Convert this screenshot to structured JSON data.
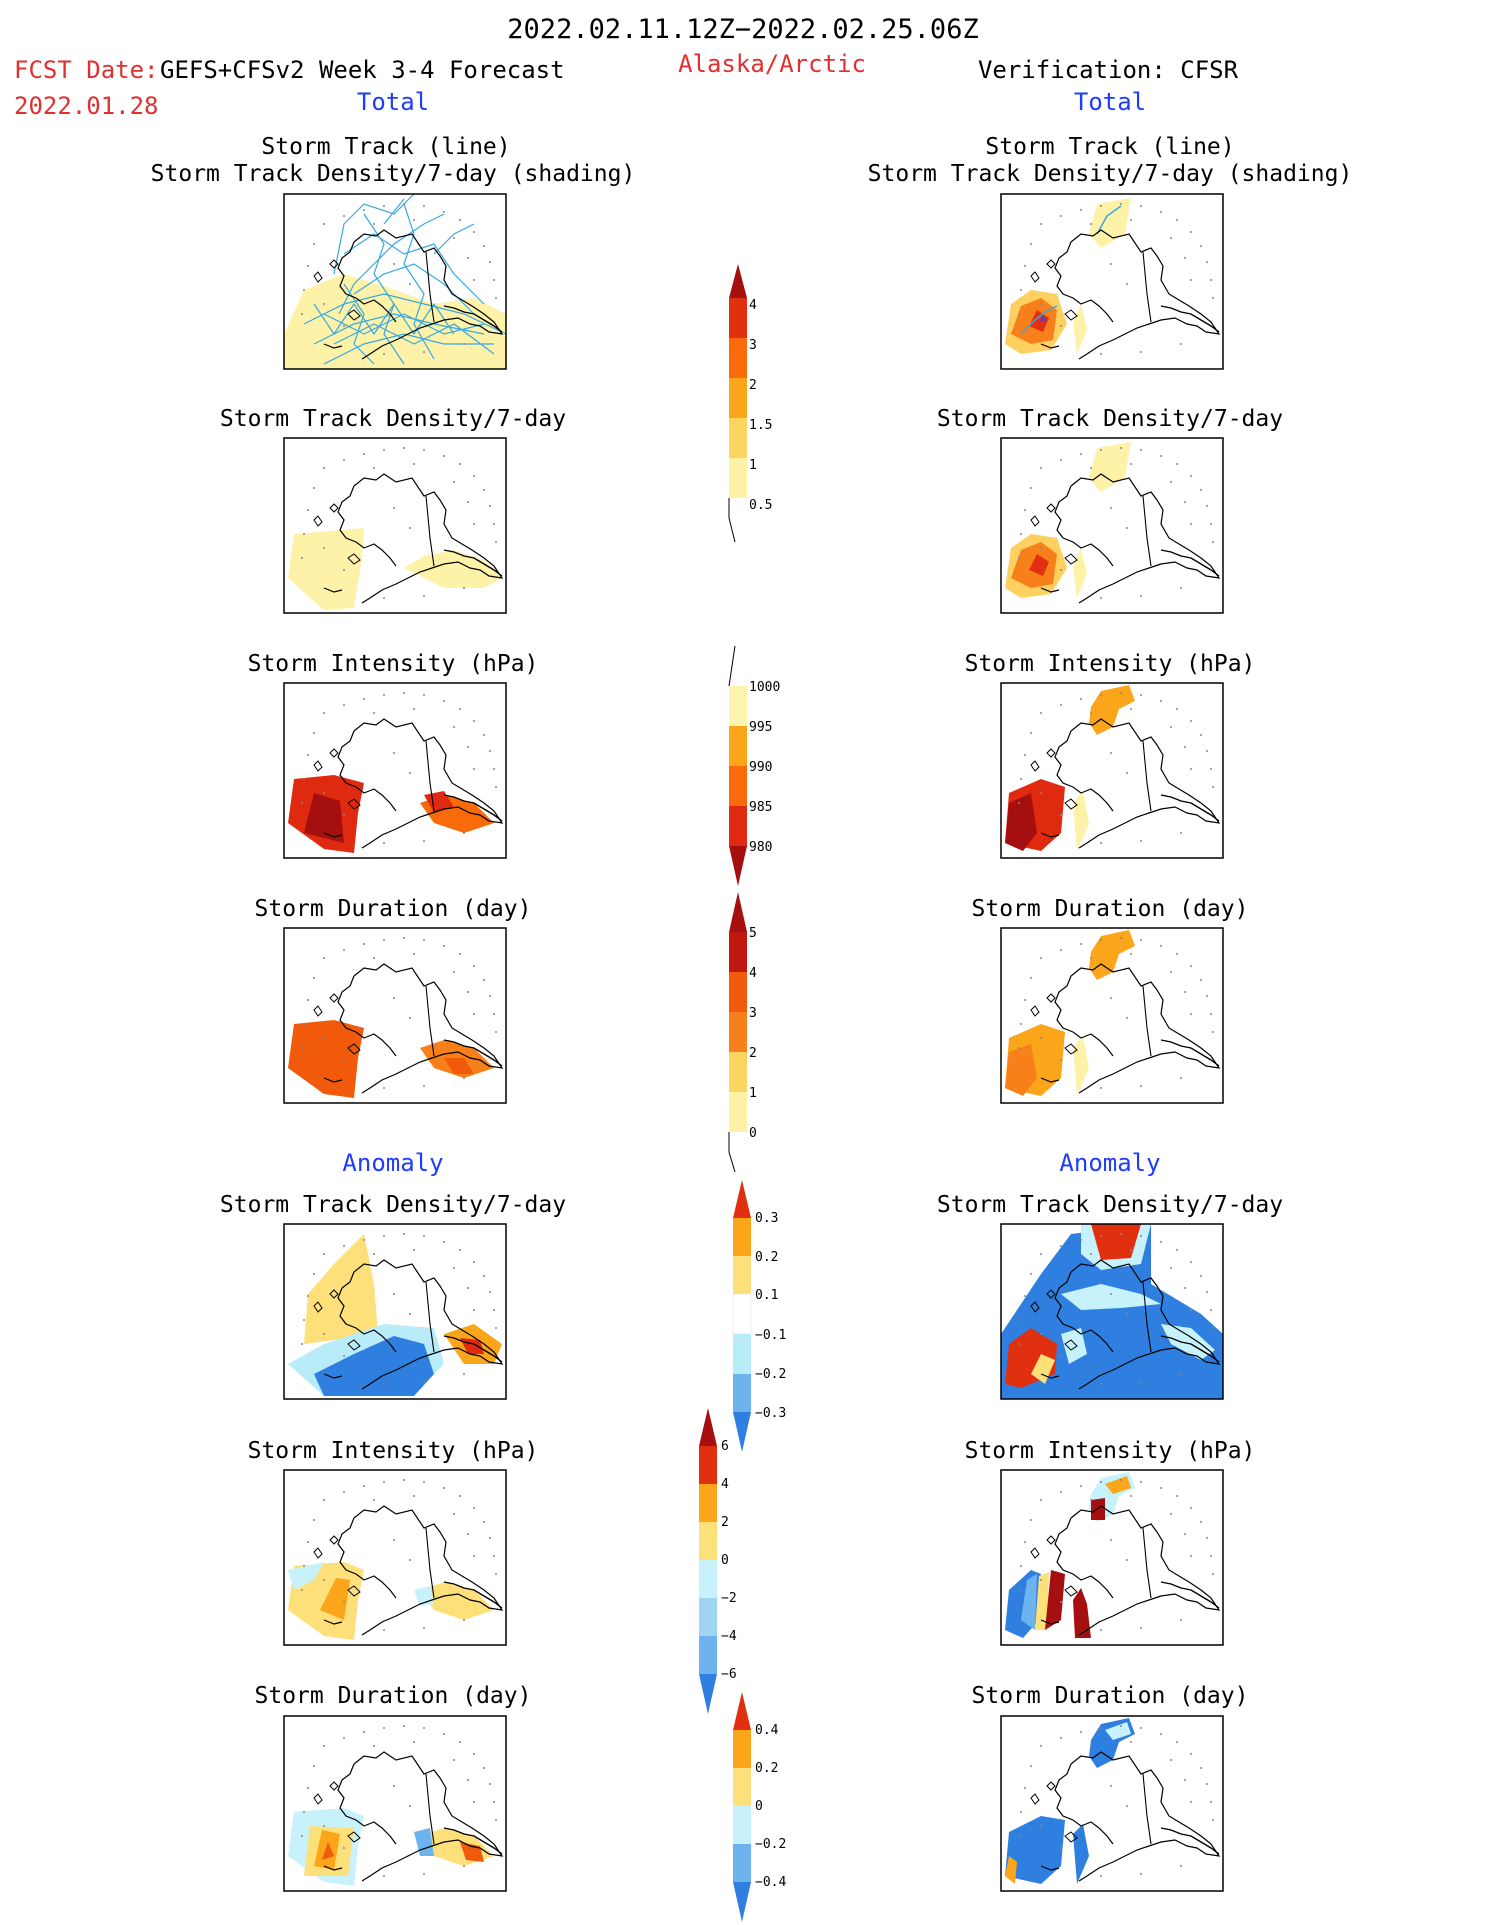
{
  "header": {
    "date_range": "2022.02.11.12Z−2022.02.25.06Z",
    "fcst_label": "FCST Date:",
    "fcst_source": "GEFS+CFSv2 Week 3-4 Forecast",
    "fcst_date": "2022.01.28",
    "region": "Alaska/Arctic",
    "verification": "Verification: CFSR"
  },
  "columns": {
    "left_total": "Total",
    "right_total": "Total",
    "left_anomaly": "Anomaly",
    "right_anomaly": "Anomaly"
  },
  "panel_titles": {
    "track_line": "Storm Track (line)",
    "track_density_shading": "Storm Track Density/7-day (shading)",
    "track_density": "Storm Track Density/7-day",
    "intensity": "Storm Intensity (hPa)",
    "duration": "Storm Duration (day)"
  },
  "colorbars": {
    "density_total": {
      "labels": [
        "4",
        "3",
        "2",
        "1.5",
        "1",
        "0.5"
      ],
      "colors": [
        "#a50f0f",
        "#e03010",
        "#f86a0a",
        "#fba51a",
        "#fcd560",
        "#fdf2a8"
      ]
    },
    "intensity_total": {
      "labels": [
        "1000",
        "995",
        "990",
        "985",
        "980"
      ],
      "colors": [
        "#fdf4b0",
        "#fba51a",
        "#f86a0a",
        "#e02a0f",
        "#a50f0f"
      ]
    },
    "duration_total": {
      "labels": [
        "5",
        "4",
        "3",
        "2",
        "1",
        "0"
      ],
      "colors": [
        "#c0180e",
        "#f05a0a",
        "#f8801a",
        "#fba51a",
        "#fcd560",
        "#fdf2a8"
      ]
    },
    "density_anom": {
      "labels": [
        "0.3",
        "0.2",
        "0.1",
        "−0.1",
        "−0.2",
        "−0.3"
      ],
      "colors": [
        "#f86a0a",
        "#fba51a",
        "#fde07a",
        "#ffffff",
        "#b8ecf8",
        "#6db4ef",
        "#2f7fe0"
      ]
    },
    "intensity_anom": {
      "labels": [
        "6",
        "4",
        "2",
        "0",
        "−2",
        "−4",
        "−6"
      ],
      "colors": [
        "#e03010",
        "#fba51a",
        "#fde07a",
        "#c8f2fb",
        "#9fd4f5",
        "#6db4ef",
        "#2f7fe0"
      ]
    },
    "duration_anom": {
      "labels": [
        "0.4",
        "0.2",
        "0",
        "−0.2",
        "−0.4"
      ],
      "colors": [
        "#f86a0a",
        "#fba51a",
        "#fde07a",
        "#c8f2fb",
        "#6db4ef",
        "#2f7fe0"
      ]
    }
  }
}
